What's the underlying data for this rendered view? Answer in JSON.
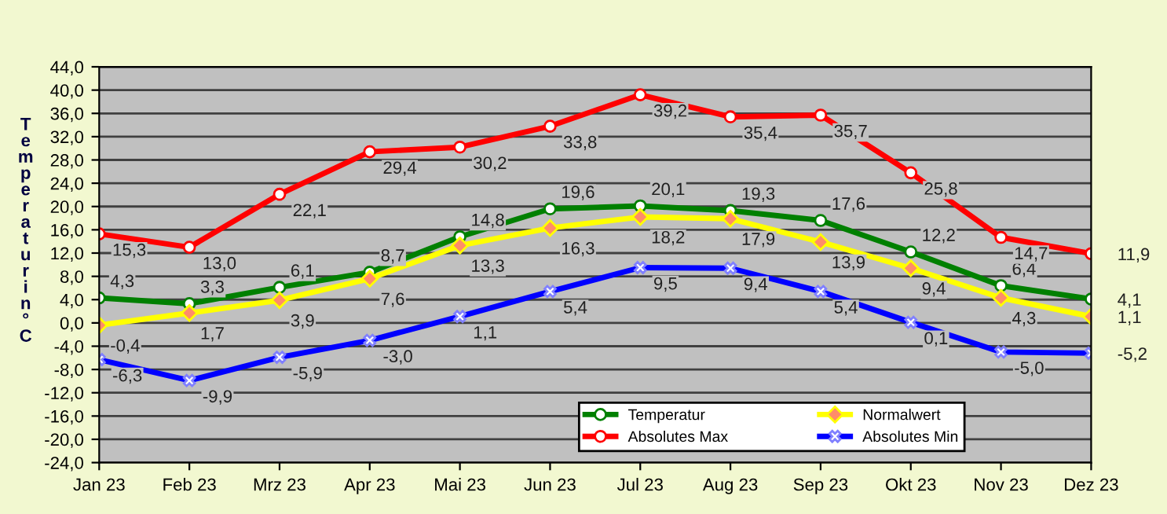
{
  "chart_data": {
    "type": "line",
    "ylabel": "Temperatur in °C",
    "categories": [
      "Jan 23",
      "Feb 23",
      "Mrz 23",
      "Apr 23",
      "Mai 23",
      "Jun 23",
      "Jul 23",
      "Aug 23",
      "Sep 23",
      "Okt 23",
      "Nov 23",
      "Dez 23"
    ],
    "series": [
      {
        "name": "Temperatur",
        "color": "#008000",
        "marker": "circle",
        "values": [
          4.3,
          3.3,
          6.1,
          8.7,
          14.8,
          19.6,
          20.1,
          19.3,
          17.6,
          12.2,
          6.4,
          4.1
        ],
        "value_labels": [
          "4,3",
          "3,3",
          "6,1",
          "8,7",
          "14,8",
          "19,6",
          "20,1",
          "19,3",
          "17,6",
          "12,2",
          "6,4",
          "4,1"
        ]
      },
      {
        "name": "Normalwert",
        "color": "#ffff00",
        "marker": "diamond",
        "values": [
          -0.4,
          1.7,
          3.9,
          7.6,
          13.3,
          16.3,
          18.2,
          17.9,
          13.9,
          9.4,
          4.3,
          1.1
        ],
        "value_labels": [
          "-0,4",
          "1,7",
          "3,9",
          "7,6",
          "13,3",
          "16,3",
          "18,2",
          "17,9",
          "13,9",
          "9,4",
          "4,3",
          "1,1"
        ]
      },
      {
        "name": "Absolutes Max",
        "color": "#ff0000",
        "marker": "circle",
        "values": [
          15.3,
          13.0,
          22.1,
          29.4,
          30.2,
          33.8,
          39.2,
          35.4,
          35.7,
          25.8,
          14.7,
          11.9
        ],
        "value_labels": [
          "15,3",
          "13,0",
          "22,1",
          "29,4",
          "30,2",
          "33,8",
          "39,2",
          "35,4",
          "35,7",
          "25,8",
          "14,7",
          "11,9"
        ]
      },
      {
        "name": "Absolutes Min",
        "color": "#0000ff",
        "marker": "cross",
        "values": [
          -6.3,
          -9.9,
          -5.9,
          -3.0,
          1.1,
          5.4,
          9.5,
          9.4,
          5.4,
          0.1,
          -5.0,
          -5.2
        ],
        "value_labels": [
          "-6,3",
          "-9,9",
          "-5,9",
          "-3,0",
          "1,1",
          "5,4",
          "9,5",
          "9,4",
          "5,4",
          "0,1",
          "-5,0",
          "-5,2"
        ]
      }
    ],
    "ylim": [
      -24,
      44
    ],
    "yticks": [
      {
        "value": -24,
        "label": "-24,0"
      },
      {
        "value": -20,
        "label": "-20,0"
      },
      {
        "value": -16,
        "label": "-16,0"
      },
      {
        "value": -12,
        "label": "-12,0"
      },
      {
        "value": -8,
        "label": "-8,0"
      },
      {
        "value": -4,
        "label": "-4,0"
      },
      {
        "value": 0,
        "label": "0,0"
      },
      {
        "value": 4,
        "label": "4,0"
      },
      {
        "value": 8,
        "label": "8,0"
      },
      {
        "value": 12,
        "label": "12,0"
      },
      {
        "value": 16,
        "label": "16,0"
      },
      {
        "value": 20,
        "label": "20,0"
      },
      {
        "value": 24,
        "label": "24,0"
      },
      {
        "value": 28,
        "label": "28,0"
      },
      {
        "value": 32,
        "label": "32,0"
      },
      {
        "value": 36,
        "label": "36,0"
      },
      {
        "value": 40,
        "label": "40,0"
      },
      {
        "value": 44,
        "label": "44,0"
      }
    ],
    "grid": "y",
    "legend": "bottom right",
    "line_style": "solid"
  }
}
